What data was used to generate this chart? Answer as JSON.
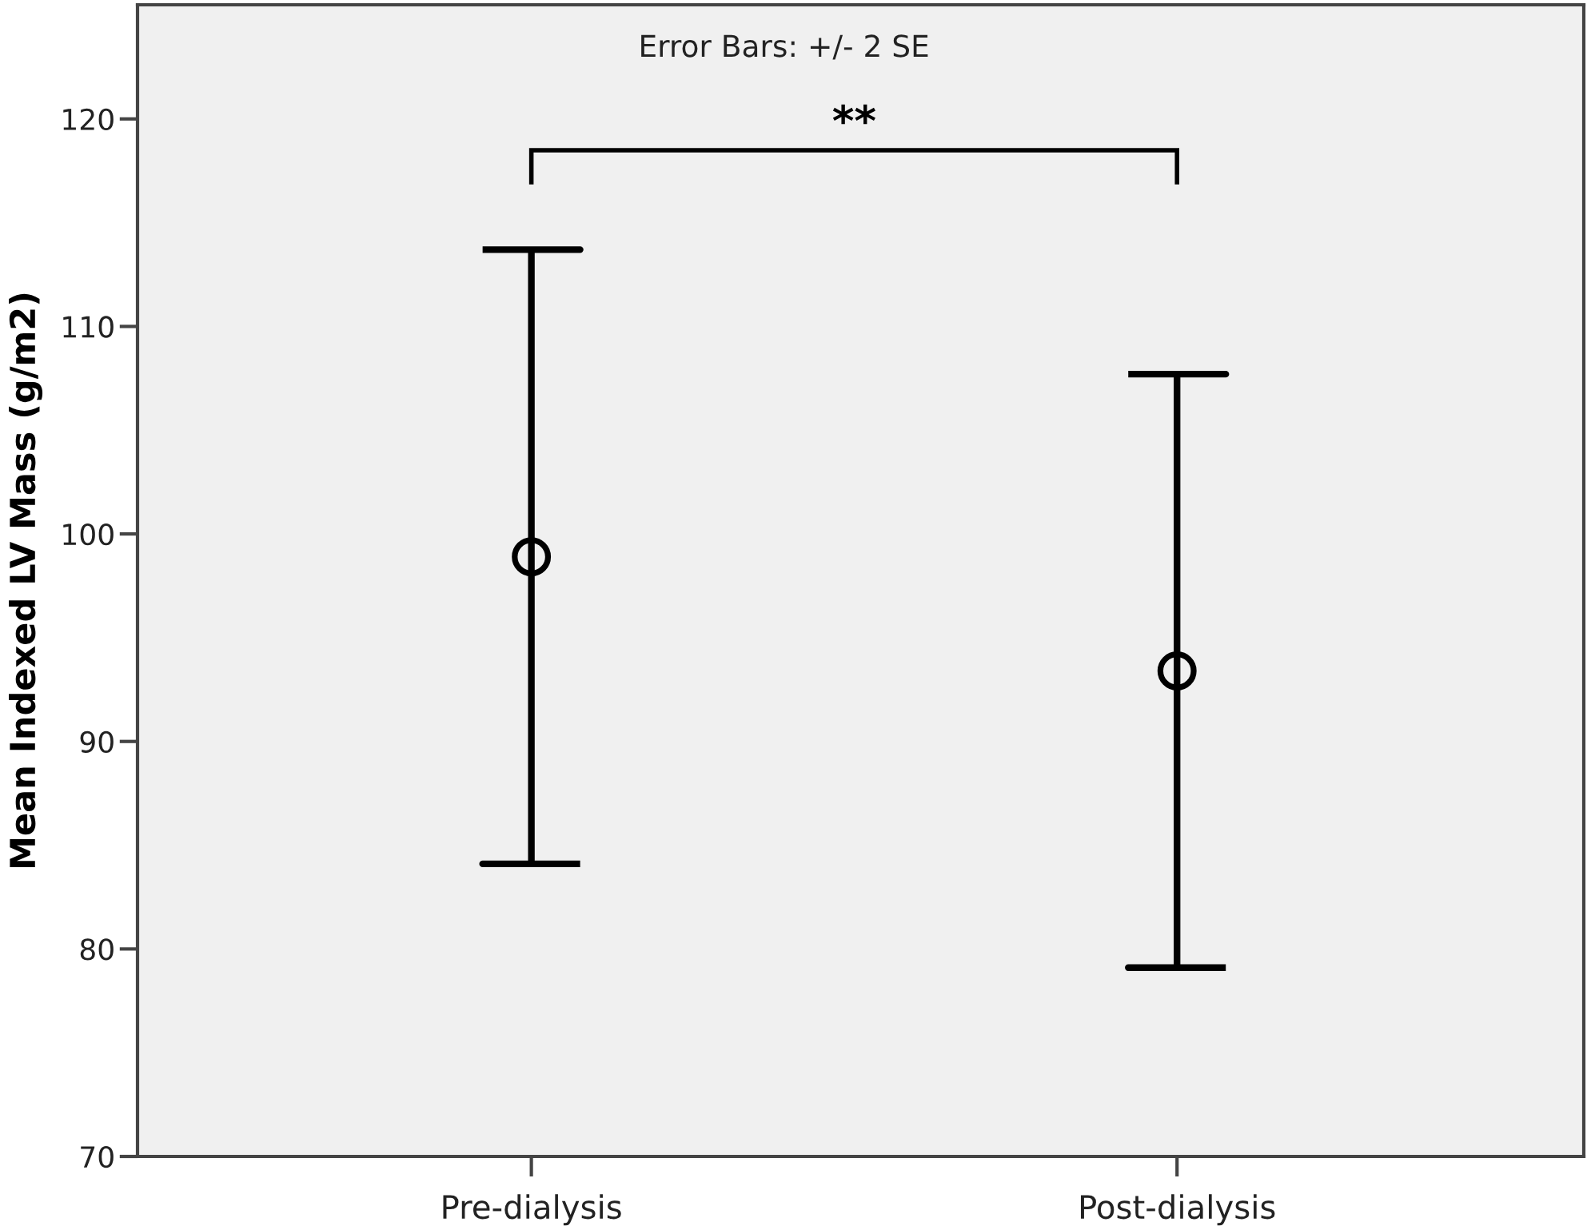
{
  "chart_data": {
    "type": "scatter",
    "ylabel": "Mean Indexed LV Mass (g/m2)",
    "categories": [
      "Pre-dialysis",
      "Post-dialysis"
    ],
    "values": [
      98.9,
      93.4
    ],
    "errors": [
      14.8,
      14.3
    ],
    "color": "#000000",
    "marker": "circle",
    "ylim": [
      70,
      125.5
    ],
    "yticks": [
      70,
      80,
      90,
      100,
      110,
      120
    ],
    "annotations": [
      "Error Bars: +/- 2 SE",
      "**"
    ]
  }
}
